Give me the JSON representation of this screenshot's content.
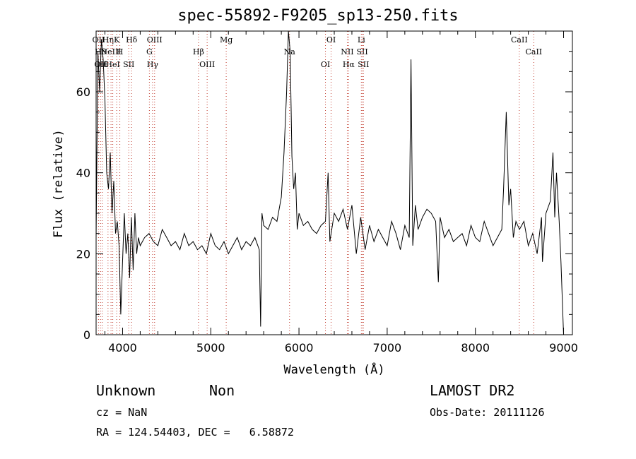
{
  "chart_data": {
    "type": "line",
    "title": "spec-55892-F9205_sp13-250.fits",
    "xlabel": "Wavelength (Å)",
    "ylabel": "Flux (relative)",
    "xlim": [
      3700,
      9100
    ],
    "ylim": [
      0,
      75
    ],
    "xticks": [
      4000,
      5000,
      6000,
      7000,
      8000,
      9000
    ],
    "yticks": [
      0,
      20,
      40,
      60
    ],
    "grid": false,
    "line_color": "#000000",
    "marker_color": "#c0392b",
    "series": [
      {
        "x": [
          3700,
          3720,
          3740,
          3760,
          3780,
          3800,
          3820,
          3840,
          3860,
          3880,
          3900,
          3920,
          3940,
          3960,
          3980,
          4000,
          4020,
          4040,
          4060,
          4080,
          4100,
          4120,
          4140,
          4160,
          4180,
          4200,
          4250,
          4300,
          4350,
          4400,
          4450,
          4500,
          4550,
          4600,
          4650,
          4700,
          4750,
          4800,
          4850,
          4900,
          4950,
          5000,
          5050,
          5100,
          5150,
          5200,
          5250,
          5300,
          5350,
          5400,
          5450,
          5500,
          5550,
          5565,
          5580,
          5600,
          5650,
          5700,
          5750,
          5800,
          5830,
          5860,
          5880,
          5900,
          5920,
          5940,
          5960,
          5980,
          6000,
          6050,
          6100,
          6150,
          6200,
          6250,
          6300,
          6330,
          6350,
          6400,
          6450,
          6500,
          6550,
          6600,
          6650,
          6700,
          6750,
          6800,
          6850,
          6900,
          6950,
          7000,
          7050,
          7100,
          7150,
          7200,
          7250,
          7270,
          7290,
          7320,
          7350,
          7400,
          7450,
          7500,
          7550,
          7580,
          7600,
          7650,
          7700,
          7750,
          7800,
          7850,
          7900,
          7950,
          8000,
          8050,
          8100,
          8150,
          8200,
          8250,
          8300,
          8320,
          8350,
          8380,
          8400,
          8430,
          8460,
          8500,
          8550,
          8600,
          8650,
          8700,
          8750,
          8760,
          8800,
          8850,
          8880,
          8900,
          8920,
          8950,
          8970,
          9000
        ],
        "y": [
          24,
          70,
          60,
          73,
          68,
          58,
          40,
          36,
          45,
          30,
          38,
          25,
          28,
          22,
          5,
          18,
          30,
          20,
          25,
          14,
          29,
          16,
          30,
          20,
          24,
          22,
          24,
          25,
          23,
          22,
          26,
          24,
          22,
          23,
          21,
          25,
          22,
          23,
          21,
          22,
          20,
          25,
          22,
          21,
          23,
          20,
          22,
          24,
          21,
          23,
          22,
          24,
          21,
          2,
          30,
          27,
          26,
          29,
          28,
          34,
          45,
          60,
          75,
          70,
          44,
          36,
          40,
          26,
          30,
          27,
          28,
          26,
          25,
          27,
          28,
          40,
          23,
          30,
          28,
          31,
          26,
          32,
          20,
          29,
          21,
          27,
          23,
          26,
          24,
          22,
          28,
          25,
          21,
          27,
          24,
          68,
          22,
          32,
          26,
          29,
          31,
          30,
          28,
          13,
          29,
          24,
          26,
          23,
          24,
          25,
          22,
          27,
          24,
          23,
          28,
          25,
          22,
          24,
          26,
          36,
          55,
          32,
          36,
          24,
          28,
          26,
          28,
          22,
          25,
          20,
          29,
          18,
          30,
          33,
          45,
          29,
          40,
          28,
          18,
          0
        ]
      }
    ],
    "line_markers": [
      {
        "x": 3727,
        "labels": [
          "OII"
        ]
      },
      {
        "x": 3750,
        "labels": [
          "Hθ",
          "OII"
        ]
      },
      {
        "x": 3770,
        "labels": [
          "Hθ"
        ]
      },
      {
        "x": 3835,
        "labels": [
          "Hη"
        ]
      },
      {
        "x": 3869,
        "labels": [
          "NeIII"
        ]
      },
      {
        "x": 3889,
        "labels": [
          "HeI"
        ]
      },
      {
        "x": 3933,
        "labels": [
          "K"
        ]
      },
      {
        "x": 3969,
        "labels": [
          "H"
        ]
      },
      {
        "x": 4070,
        "labels": [
          "SII"
        ]
      },
      {
        "x": 4102,
        "labels": [
          "Hδ"
        ]
      },
      {
        "x": 4304,
        "labels": [
          "G"
        ]
      },
      {
        "x": 4340,
        "labels": [
          "Hγ"
        ]
      },
      {
        "x": 4363,
        "labels": [
          "OIII"
        ]
      },
      {
        "x": 4861,
        "labels": [
          "Hβ"
        ]
      },
      {
        "x": 4959,
        "labels": [
          "OIII"
        ]
      },
      {
        "x": 5175,
        "labels": [
          "Mg"
        ]
      },
      {
        "x": 5893,
        "labels": [
          "Na"
        ]
      },
      {
        "x": 6300,
        "labels": [
          "OI"
        ]
      },
      {
        "x": 6364,
        "labels": [
          "OI"
        ]
      },
      {
        "x": 6548,
        "labels": [
          "NII"
        ]
      },
      {
        "x": 6563,
        "labels": [
          "Hα"
        ]
      },
      {
        "x": 6707,
        "labels": [
          "Li"
        ]
      },
      {
        "x": 6717,
        "labels": [
          "SII"
        ]
      },
      {
        "x": 6731,
        "labels": [
          "SII"
        ]
      },
      {
        "x": 8498,
        "labels": [
          "CaII"
        ]
      },
      {
        "x": 8662,
        "labels": [
          "CaII"
        ]
      }
    ]
  },
  "info": {
    "class": "Unknown",
    "subclass": "Non",
    "survey": "LAMOST DR2",
    "cz": "cz = NaN",
    "obs_date": "Obs-Date: 20111126",
    "coords": "RA = 124.54403, DEC =   6.58872"
  }
}
